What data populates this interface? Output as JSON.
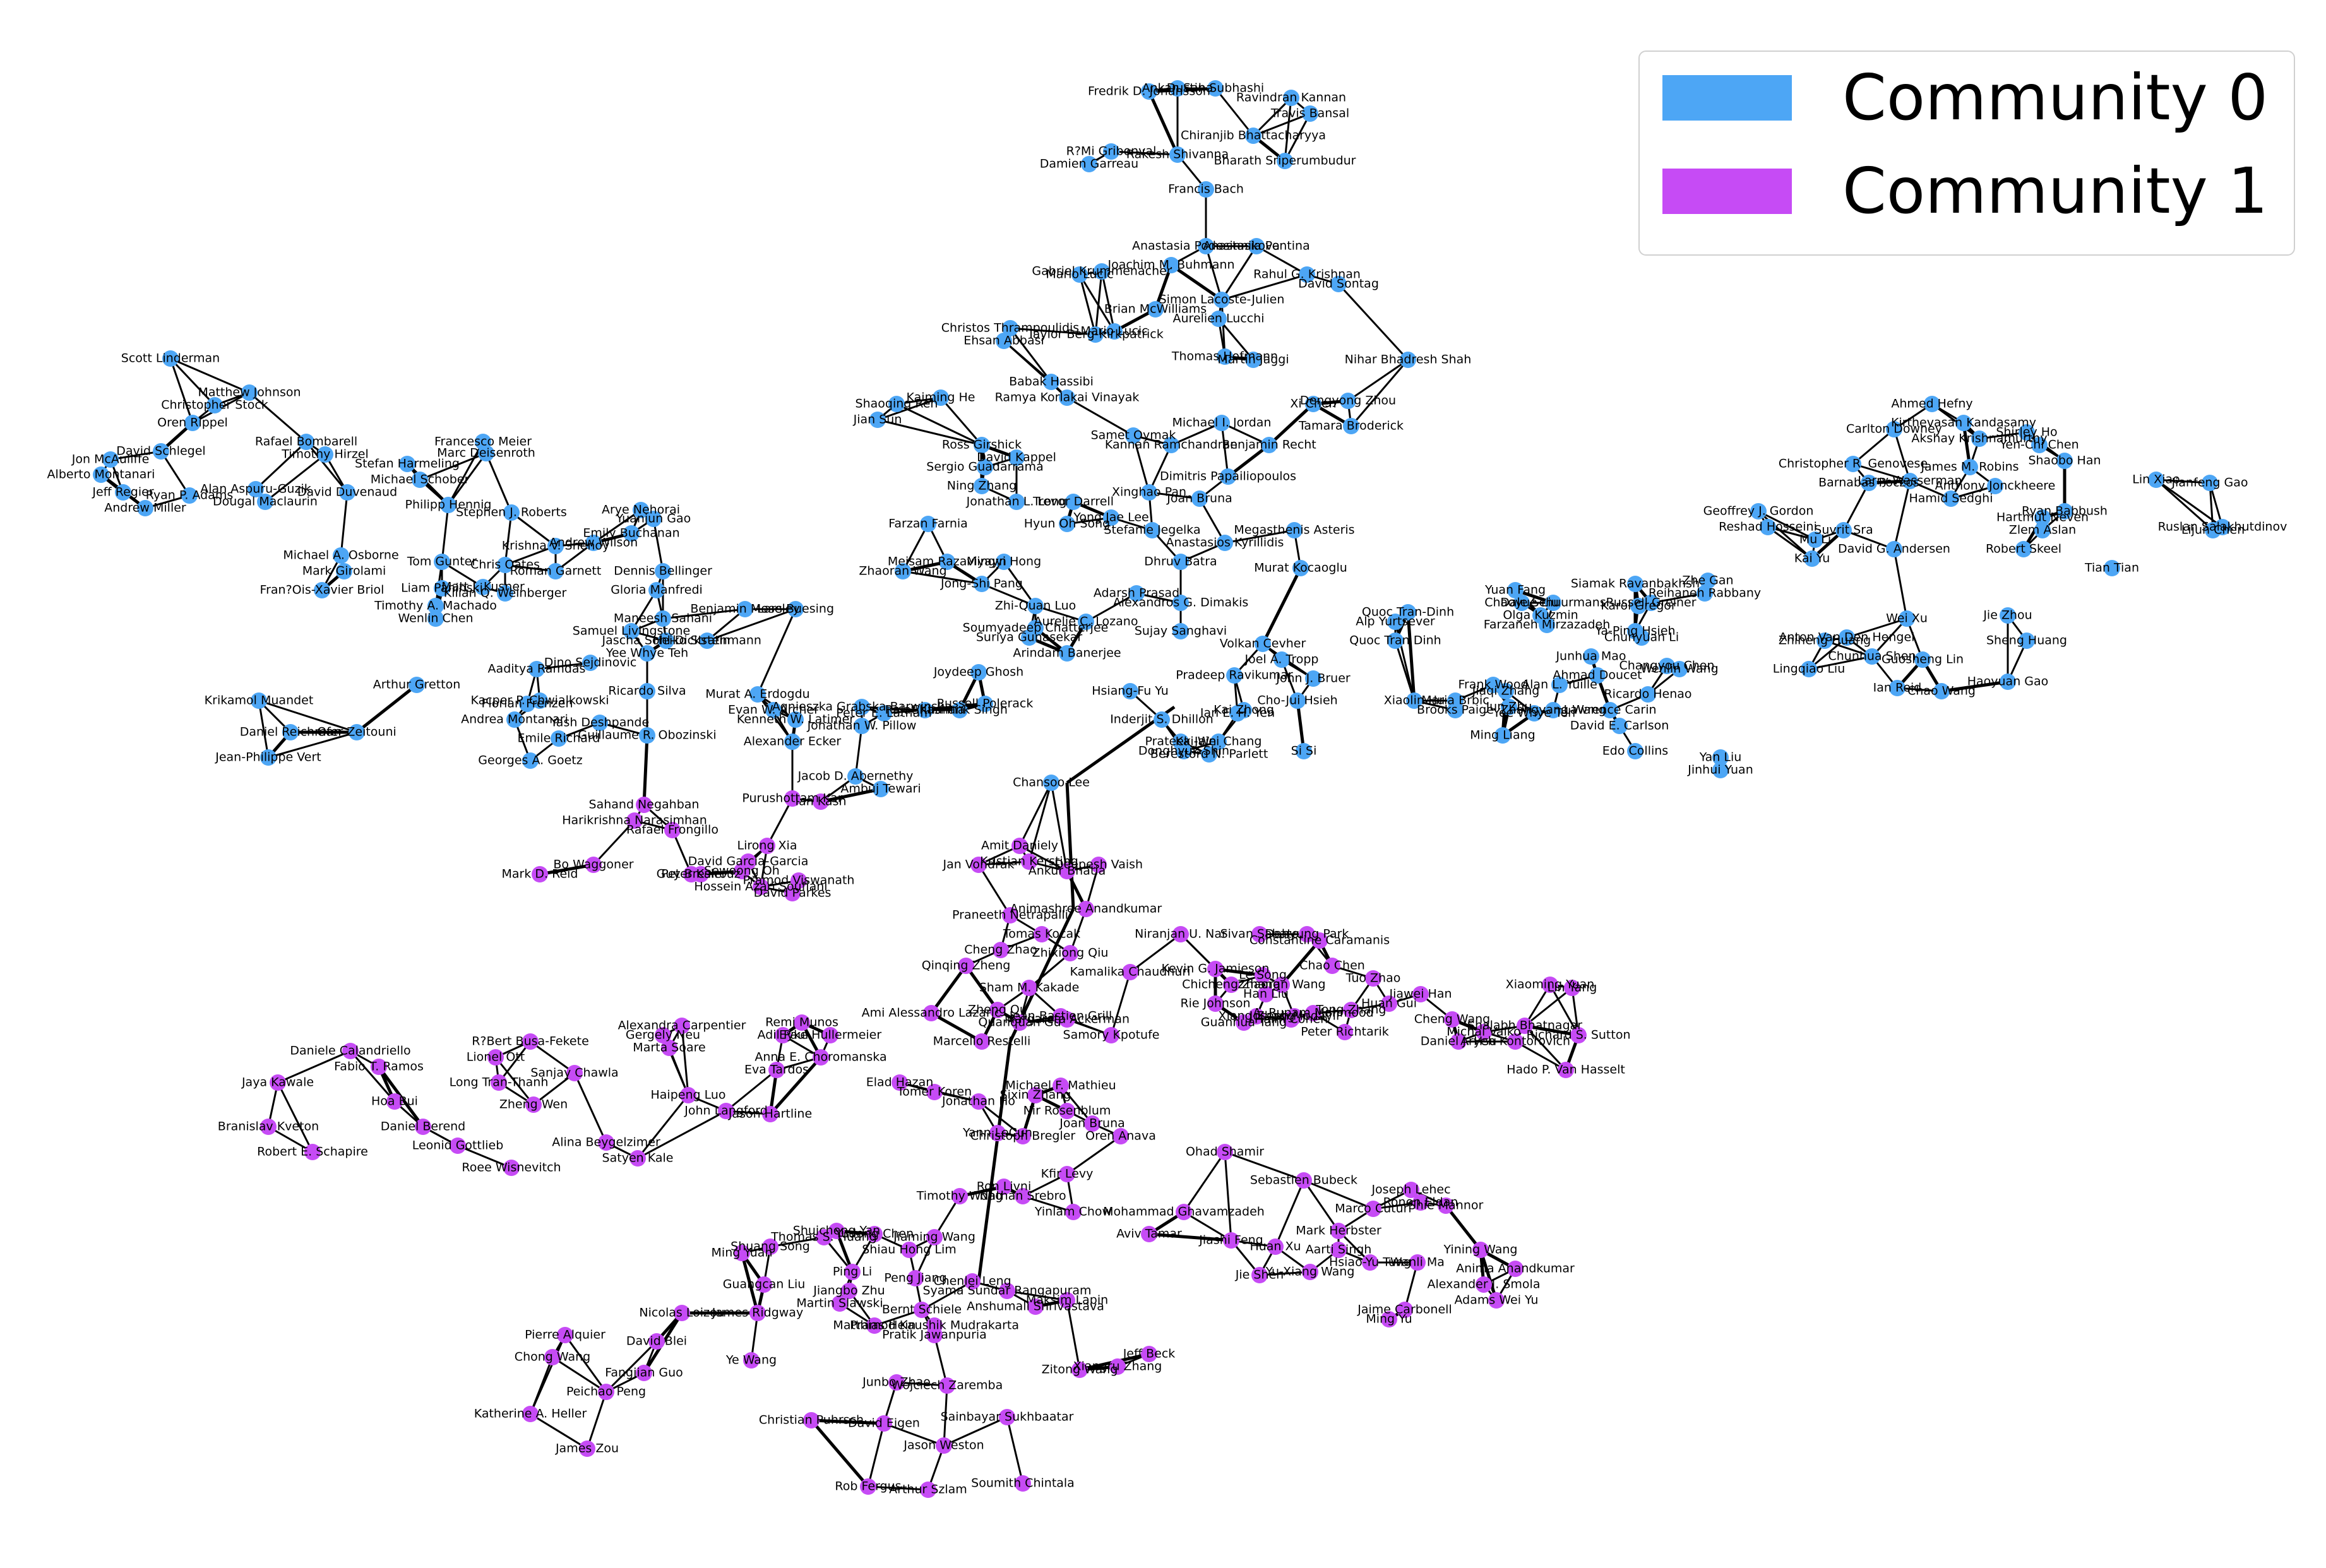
{
  "colors": {
    "community_0": "#4DA6F5",
    "community_1": "#C64BF5",
    "edge": "#000000"
  },
  "legend": {
    "items": [
      {
        "label": "Community 0",
        "color": "#4DA6F5"
      },
      {
        "label": "Community 1",
        "color": "#C64BF5"
      }
    ]
  },
  "nodes": [
    "Fredrik D. Johansson",
    "Ankan Saha",
    "Dustin Subhashi",
    "Ravindran Kannan",
    "Travis Bansal",
    "Chiranjib Bhattacharyya",
    "R?Mi Gribonval",
    "Rakesh Shivanna",
    "Damien Garreau",
    "Francis Bach",
    "Bharath Sriperumbudur",
    "Anastasia Podosinnikova",
    "Anastasia Pentina",
    "Gabriel Krummenacher",
    "Mario Lucic",
    "Joachim M. Buhmann",
    "Rahul G. Krishnan",
    "David Sontag",
    "Simon Lacoste-Julien",
    "Aurelien Lucchi",
    "Brian McWilliams",
    "Christos Thrampoulidis",
    "Ehsan Abbasi",
    "Taylor Berg-Kirkpatrick",
    "Mario Lucic",
    "Thomas Hofmann",
    "Martin Jaggi",
    "Nihar Bhadresh Shah",
    "Babak Hassibi",
    "Ramya Korlakai Vinayak",
    "Xi Chen",
    "Dengyong Zhou",
    "Samet Oymak",
    "Kannan Ramchandran",
    "Michael I. Jordan",
    "Benjamin Recht",
    "Tamara Broderick",
    "Shaoqing Ren",
    "Kaiming He",
    "Jian Sun",
    "Ross Girshick",
    "Sergio Guadarrama",
    "Ning Zhang",
    "David Kappel",
    "Jonathan L. Long",
    "Trevor Darrell",
    "Farzan Farnia",
    "Hyun Oh Song",
    "Yong Jae Lee",
    "Joan Bruna",
    "Dimitris Papailiopoulos",
    "Xinghao Pan",
    "Stefanie Jegelka",
    "Megasthenis Asteris",
    "Anastasios Kyrillidis",
    "Meisam Razaviyayn",
    "Mingyi Hong",
    "Zhaoran Wang",
    "Jong-Shi Pang",
    "Dhruv Batra",
    "Murat Kocaoglu",
    "Zhi-Quan Luo",
    "Adarsh Prasad",
    "Alexandros G. Dimakis",
    "Sujay Sanghavi",
    "Arindam Banerjee",
    "Joel A. Tropp",
    "Soumyadeep Chatterjee",
    "Suriya Gunasekar",
    "Aurelie C. Lozano",
    "Quoc Tran-Dinh",
    "Alp Yurtsever",
    "Volkan Cevher",
    "Quoc Tran Dinh",
    "John J. Bruer",
    "Joydeep Ghosh",
    "Pradeep Ravikumar",
    "Inderjit S. Dhillon",
    "Kai Zhong",
    "Prateek Jain",
    "Cho-Jui Hsieh",
    "Hsiang-Fu Yu",
    "Donghyuk Shin",
    "Berestord N. Parlett",
    "Ian E. H. Yen",
    "Kai-Wei Chang",
    "Si Si",
    "Scott Linderman",
    "Matthew Johnson",
    "Christopher Stock",
    "Oren Rippel",
    "David Schlegel",
    "Rafael Bombarell",
    "Timothy Hirzel",
    "Jon McAuliffe",
    "Alberto Montanari",
    "Jeff Regier",
    "Ryan P. Adams",
    "Andrew Miller",
    "Michael Schober",
    "Alan Aspuru-Guzik",
    "David Duvenaud",
    "Dougal Maclaurin",
    "Francesco Meier",
    "Marc Deisenroth",
    "Stefan Harmeling",
    "Philipp Hennig",
    "Stephen J. Roberts",
    "Arye Nehorai",
    "Yuanjun Gao",
    "Emily Buchanan",
    "Andrew Wilson",
    "Krishna V. Shenoy",
    "Tom Gunter",
    "Michael A. Osborne",
    "Mark Girolami",
    "Fran?Ois-Xavier Briol",
    "Chris Oates",
    "Roman Garnett",
    "Dennis Bellinger",
    "Liam Paninski",
    "Matt J. Kusner",
    "Kilian Q. Weinberger",
    "Gloria Manfredi",
    "Timothy A. Machado",
    "Wenlin Chen",
    "Benjamin Moseley",
    "Lars Buesing",
    "Maneesh Sahani",
    "Samuel Livingstone",
    "Jascha Sohl-Dickstein",
    "Heiko Strathmann",
    "Yee Whye Teh",
    "Dino Sejdinovic",
    "Aaditya Ramdas",
    "Arthur Gretton",
    "Kacper P. Chwialkowski",
    "Ricardo Silva",
    "Florian Frenzen",
    "Krikamol Muandet",
    "Daniel Reichman",
    "Ofer Zeitouni",
    "Andrea Montanari",
    "Yash Deshpande",
    "Emile Richard",
    "Guillaume R. Obozinski",
    "Georges A. Goetz",
    "Jean-Philippe Vert",
    "Murat A. Erdogdu",
    "Evan W. Archer",
    "Kenneth W. Latimer",
    "Jonathan W. Pillow",
    "Agnieszka Grabska-Barwinska",
    "Peter E. Latham",
    "Alexander Ecker",
    "Russell Polerack",
    "Rajat Khanna",
    "Shashank Singh",
    "Jacob D. Abernethy",
    "Chansoo Lee",
    "Ambuj Tewari",
    "Sahand Negahban",
    "Harikrishna Narasimhan",
    "Purushottam Kar",
    "Ian Kash",
    "Mark D. Reid",
    "Rafael Frongillo",
    "Bo Waggoner",
    "David Garcia-Garcia",
    "Guy Bresler",
    "Peter Kairouz",
    "Lirong Xia",
    "Sewoong Oh",
    "Pramod Viswanath",
    "Hossein Azari Soufiani",
    "David Parkes",
    "Jan Vondrak",
    "Kristian Kersting",
    "Deepesh Vaish",
    "Amit Daniely",
    "Ankur Bhatia",
    "Praneeth Netrapalli",
    "Animashree Anandkumar",
    "Niranjan U. Nar",
    "Dohyung Park",
    "Constantine Caramanis",
    "Chao Chen",
    "Tuo Zhao",
    "Cheng Zhao",
    "Zhixiong Qiu",
    "Qinqing Zheng",
    "Sham M. Kakade",
    "Kamalika Chaudhuri",
    "Margareta Ackerman",
    "Samory Kpotufe",
    "Kevin G. Jamieson",
    "Le Song",
    "Chicheng Zhang",
    "Zhaoran Wang",
    "Han Liu",
    "Guanhua Tang",
    "Tong Zhang",
    "Jiawei Han",
    "Huan Gui",
    "Rie Johnson",
    "Zheng Qu",
    "Quanquan Gu",
    "Peter Richtarik",
    "Lin Yang",
    "Xiaoming Yuan",
    "Cheng Wang",
    "Xiang Zhang",
    "A. Rupam Mahmood",
    "Joseph Modayil",
    "Haim Cohen",
    "Richard S. Sutton",
    "Hado P. Van Hasselt",
    "Shalabh Bhatnagar",
    "Aryeh Kontorovich",
    "Daniel J. Hsu",
    "Michal Valko",
    "Sivan Sabato",
    "Tomas Kocak",
    "Jean-Bastien Grill",
    "Alexandra Carpentier",
    "Remi Munos",
    "Gergely Neu",
    "Adil Paul",
    "Marta Soare",
    "Eyke Hullermeier",
    "Ami Alessandro Lazaric",
    "Marcello Restelli",
    "Daniele Calandriello",
    "R?Bert Busa-Fekete",
    "Lionel Ott",
    "Fabio T. Ramos",
    "Jaya Kawale",
    "Sanjay Chawla",
    "Long Tran-Thanh",
    "Hoa Bui",
    "Zheng Wen",
    "Branislav Kveton",
    "Daniel Berend",
    "Leonid Gottlieb",
    "Roee Wisnevitch",
    "Robert E. Schapire",
    "Alina Beygelzimer",
    "Satyen Kale",
    "Haipeng Luo",
    "John Langford",
    "Jason Hartline",
    "Eva Tardos",
    "Anna E. Choromanska",
    "Elad Hazan",
    "Tomer Koren",
    "Sixin Zhang",
    "Michael F. Mathieu",
    "Jonathan Ho",
    "Nir Rosenblum",
    "Christoph Bregler",
    "Yann LeCun",
    "Joan Bruna",
    "Oren Anava",
    "Kfir Levy",
    "Ohad Shamir",
    "Ron Livni",
    "Nathan Srebro",
    "Sebastien Bubeck",
    "Joseph Lehec",
    "Ronen Eldan",
    "Shie Mannor",
    "Marco Cuturi",
    "Mark Herbster",
    "Timothy Wong",
    "Yinlam Chow",
    "Aviv Tamar",
    "Mohammad Ghavamzadeh",
    "Jiashi Feng",
    "Huan Xu",
    "Jie Shen",
    "Shuicheng Yan",
    "Yudong Chen",
    "Jiaming Wang",
    "Shiau Hong Lim",
    "Shuang Song",
    "Ming Yuan",
    "Thomas S. Huang",
    "Peng Jiang",
    "Jiangbo Zhu",
    "Chenlei Leng",
    "Guangcan Liu",
    "Ping Li",
    "Martin Slawski",
    "Matthias Hein",
    "Syama Sundar Rangapuram",
    "Anshumali Shrivastava",
    "Pramod Kaushik Mudrakarta",
    "Pratik Jawanpuria",
    "Bernt Schiele",
    "Maksim Lapin",
    "Nicolas Loizou",
    "James Ridgway",
    "Pierre Alquier",
    "David Blei",
    "Chong Wang",
    "Ye Wang",
    "Fangjian Guo",
    "Peichao Peng",
    "Katherine A. Heller",
    "James Zou",
    "Zitong Wang",
    "Jeff Beck",
    "Xiangru Zhang",
    "Junbo Zhao",
    "Wojciech Zaremba",
    "Christian Puhrsch",
    "David Eigen",
    "Sainbayar Sukhbaatar",
    "Jason Weston",
    "Rob Fergus",
    "Arthur Szlam",
    "Soumith Chintala",
    "Aarti Singh",
    "Yu-Xiang Wang",
    "Hsiao-Yu Tung",
    "Yining Wang",
    "Anima Anandkumar",
    "Alexander J. Smola",
    "Adams Wei Yu",
    "Wanli Ma",
    "Jaime Carbonell",
    "Ming Yu",
    "Geoffrey J. Gordon",
    "Reshad Hosseini",
    "Mu Li",
    "Kai Yu",
    "David G. Andersen",
    "Suvrit Sra",
    "Carlton Downey",
    "Ahmed Hefny",
    "Kirthevasan Kandasamy",
    "Akshay Krishnamurthy",
    "Shirley Ho",
    "Yen-Chi Chen",
    "Christopher R. Genovese",
    "Barnabas Poczos",
    "Larry Wasserman",
    "James M. Robins",
    "Hamid Sedghi",
    "Anthony Jonckheere",
    "Shaobo Han",
    "Lin Xiao",
    "Jianfeng Gao",
    "Ruslan Salakhutdinov",
    "Lijun Chen",
    "Hartmut Neven",
    "Ryan Babbush",
    "Zlem Aslan",
    "Robert Skeel",
    "Tian Tian",
    "Yuan Fang",
    "Chaoyue Liu",
    "Olga Kuzmin",
    "Dale Schuurmans",
    "Farzaneh Mirzazadeh",
    "Siamak Ravanbakhsh",
    "Karol Gregor",
    "Reihaneh Rabbany",
    "Russell Greiner",
    "Zhe Gan",
    "Ya-Ping Hsieh",
    "Chunyuan Li",
    "Changyou Chen",
    "Wenlin Wang",
    "Ricardo Henao",
    "Lawrence Carin",
    "David E. Carlson",
    "Edo Collins",
    "Yan Liu",
    "Jinhui Yuan",
    "Ming Liang",
    "Xiaolin Hu",
    "Frank Wood",
    "Jiaqi Zhang",
    "Jun Zhu",
    "Yee Whye Teh",
    "Alan L. Yuille",
    "Zhangyang Wang",
    "Maria Brbic",
    "Brooks Paige",
    "Ahmad Doucet",
    "Junhua Mao",
    "Jie Zhou",
    "Sheng Huang",
    "Wei Xu",
    "Haoyuan Gao",
    "Zhiheng Huang",
    "Lingqiao Liu",
    "Anton Van Den Hengel",
    "Chunhua Shen",
    "Guosheng Lin",
    "Chao Wang",
    "Ian Reid"
  ]
}
